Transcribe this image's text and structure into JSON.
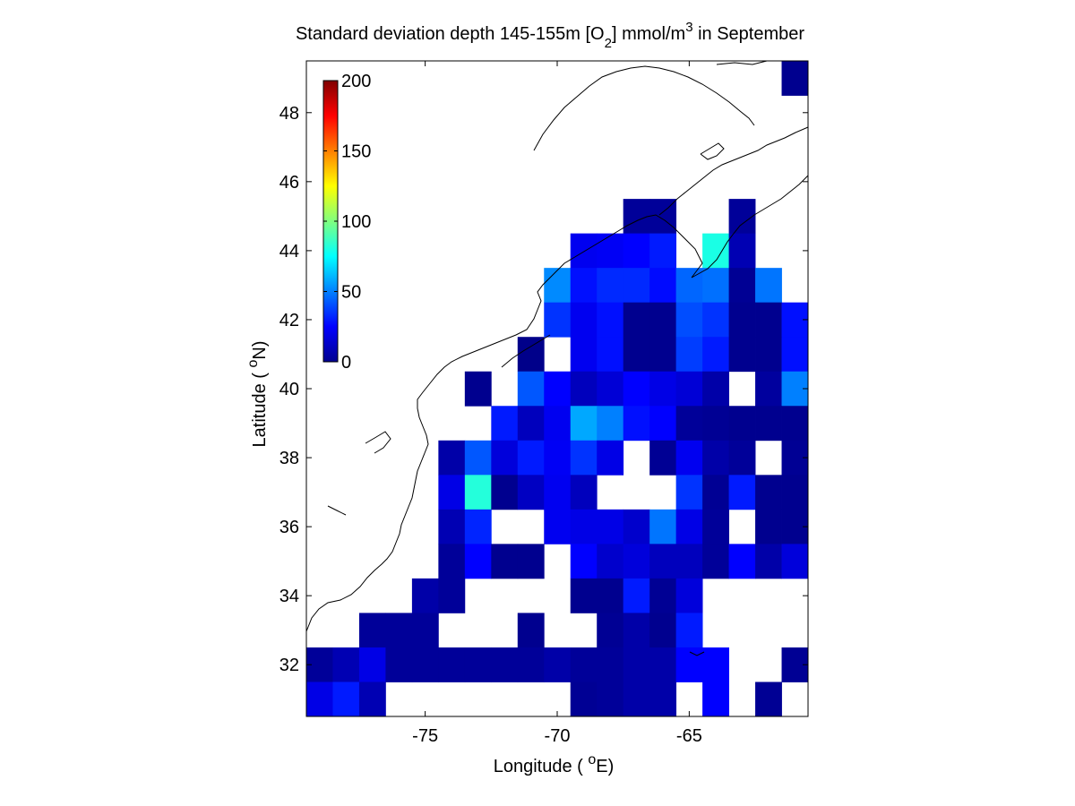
{
  "chart_data": {
    "type": "heatmap",
    "title_parts": {
      "pre": "Standard deviation depth 145-155m [O",
      "sub": "2",
      "post1": "] mmol/m",
      "sup": "3",
      "post2": " in September"
    },
    "xlabel_parts": {
      "pre": "Longitude ( ",
      "sup": "o",
      "post": "E)"
    },
    "ylabel_parts": {
      "pre": "Latitude ( ",
      "sup": "o",
      "post": "N)"
    },
    "xlim": [
      -79.5,
      -60.5
    ],
    "ylim": [
      30.5,
      49.5
    ],
    "xticks": [
      -75,
      -70,
      -65
    ],
    "xtick_labels": [
      "-75",
      "-70",
      "-65"
    ],
    "yticks": [
      32,
      34,
      36,
      38,
      40,
      42,
      44,
      46,
      48
    ],
    "ytick_labels": [
      "32",
      "34",
      "36",
      "38",
      "40",
      "42",
      "44",
      "46",
      "48"
    ],
    "colorbar": {
      "min": 0,
      "max": 200,
      "ticks": [
        0,
        50,
        100,
        150,
        200
      ],
      "tick_labels": [
        "0",
        "50",
        "100",
        "150",
        "200"
      ],
      "colormap": "jet",
      "placement": "upper-left"
    },
    "cell_size_deg": 1,
    "x_centers": [
      -79,
      -78,
      -77,
      -76,
      -75,
      -74,
      -73,
      -72,
      -71,
      -70,
      -69,
      -68,
      -67,
      -66,
      -65,
      -64,
      -63,
      -62,
      -61
    ],
    "y_centers": [
      49,
      48,
      47,
      46,
      45,
      44,
      43,
      42,
      41,
      40,
      39,
      38,
      37,
      36,
      35,
      34,
      33,
      32,
      31
    ],
    "values_rows_north_to_south": [
      [
        null,
        null,
        null,
        null,
        null,
        null,
        null,
        null,
        null,
        null,
        null,
        null,
        null,
        null,
        null,
        null,
        null,
        null,
        3
      ],
      [
        null,
        null,
        null,
        null,
        null,
        null,
        null,
        null,
        null,
        null,
        null,
        null,
        null,
        null,
        null,
        null,
        null,
        null,
        null
      ],
      [
        null,
        null,
        null,
        null,
        null,
        null,
        null,
        null,
        null,
        null,
        null,
        null,
        null,
        null,
        null,
        null,
        null,
        null,
        null
      ],
      [
        null,
        null,
        null,
        null,
        null,
        null,
        null,
        null,
        null,
        null,
        null,
        null,
        null,
        null,
        null,
        null,
        null,
        null,
        null
      ],
      [
        null,
        null,
        null,
        null,
        null,
        null,
        null,
        null,
        null,
        null,
        null,
        null,
        5,
        5,
        null,
        null,
        5,
        null,
        null
      ],
      [
        null,
        null,
        null,
        null,
        null,
        null,
        null,
        null,
        null,
        null,
        22,
        23,
        25,
        30,
        null,
        80,
        10,
        null,
        null
      ],
      [
        null,
        null,
        null,
        null,
        null,
        null,
        null,
        null,
        null,
        52,
        28,
        33,
        33,
        27,
        45,
        47,
        4,
        48,
        null
      ],
      [
        null,
        null,
        null,
        null,
        null,
        null,
        null,
        null,
        null,
        35,
        22,
        28,
        3,
        3,
        40,
        35,
        3,
        3,
        28
      ],
      [
        null,
        null,
        null,
        null,
        null,
        null,
        null,
        null,
        2,
        null,
        22,
        28,
        3,
        3,
        37,
        30,
        3,
        3,
        28
      ],
      [
        null,
        null,
        null,
        null,
        null,
        null,
        3,
        null,
        42,
        25,
        12,
        17,
        25,
        20,
        17,
        8,
        null,
        6,
        50
      ],
      [
        null,
        null,
        null,
        null,
        null,
        null,
        null,
        30,
        12,
        22,
        58,
        50,
        28,
        25,
        5,
        4,
        3,
        3,
        3
      ],
      [
        null,
        null,
        null,
        null,
        null,
        8,
        42,
        18,
        30,
        23,
        35,
        20,
        null,
        4,
        22,
        8,
        5,
        null,
        4
      ],
      [
        null,
        null,
        null,
        null,
        null,
        20,
        82,
        3,
        13,
        22,
        12,
        null,
        null,
        null,
        35,
        4,
        30,
        3,
        3
      ],
      [
        null,
        null,
        null,
        null,
        null,
        10,
        32,
        null,
        null,
        22,
        20,
        20,
        15,
        48,
        20,
        5,
        null,
        3,
        3
      ],
      [
        null,
        null,
        null,
        null,
        null,
        5,
        25,
        3,
        3,
        null,
        25,
        15,
        18,
        12,
        12,
        5,
        25,
        8,
        18
      ],
      [
        null,
        null,
        null,
        null,
        8,
        5,
        null,
        null,
        null,
        null,
        3,
        3,
        30,
        4,
        18,
        null,
        null,
        null,
        null
      ],
      [
        null,
        null,
        5,
        5,
        5,
        null,
        null,
        null,
        3,
        null,
        null,
        4,
        8,
        3,
        30,
        null,
        null,
        null,
        null
      ],
      [
        5,
        10,
        20,
        5,
        5,
        5,
        5,
        5,
        5,
        8,
        5,
        5,
        8,
        8,
        25,
        25,
        null,
        null,
        4
      ],
      [
        20,
        30,
        10,
        null,
        null,
        null,
        null,
        null,
        null,
        null,
        4,
        5,
        8,
        8,
        null,
        25,
        null,
        4,
        null
      ]
    ]
  }
}
